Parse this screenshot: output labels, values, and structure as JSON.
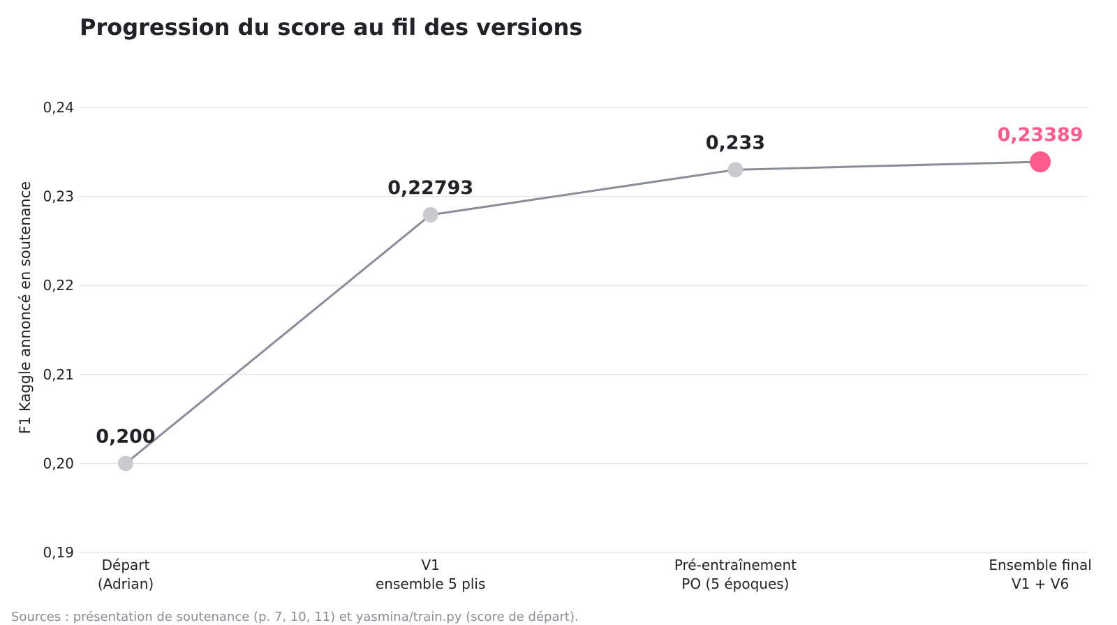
{
  "chart_data": {
    "type": "line",
    "title": "Progression du score au fil des versions",
    "ylabel": "F1 Kaggle annoncé en soutenance",
    "xlabel": "",
    "ylim": [
      0.19,
      0.24
    ],
    "yticks": [
      "0,19",
      "0,20",
      "0,21",
      "0,22",
      "0,23",
      "0,24"
    ],
    "ytick_values": [
      0.19,
      0.2,
      0.21,
      0.22,
      0.23,
      0.24
    ],
    "grid": true,
    "categories": [
      [
        "Départ",
        "(Adrian)"
      ],
      [
        "V1",
        "ensemble 5 plis"
      ],
      [
        "Pré-entraînement",
        "PO (5 époques)"
      ],
      [
        "Ensemble final",
        "V1 + V6"
      ]
    ],
    "values": [
      0.2,
      0.22793,
      0.233,
      0.23389
    ],
    "value_labels": [
      "0,200",
      "0,22793",
      "0,233",
      "0,23389"
    ],
    "highlight_index": 3,
    "colors": {
      "line": "#8a8d98",
      "point": "#c8cace",
      "highlight": "#ff5c8d",
      "text": "#222326",
      "grid": "#e2e3e6"
    }
  },
  "source_note": "Sources : présentation de soutenance (p. 7, 10, 11) et yasmina/train.py (score de départ)."
}
